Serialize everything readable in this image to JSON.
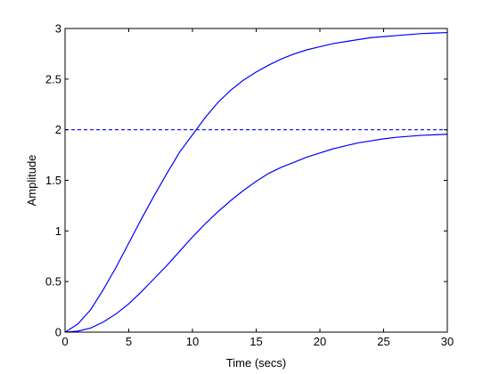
{
  "chart_data": {
    "type": "line",
    "xlabel": "Time (secs)",
    "ylabel": "Amplitude",
    "xlim": [
      0,
      30
    ],
    "ylim": [
      0,
      3
    ],
    "xticks": [
      0,
      5,
      10,
      15,
      20,
      25,
      30
    ],
    "yticks": [
      0,
      0.5,
      1,
      1.5,
      2,
      2.5,
      3
    ],
    "xtick_labels": [
      "0",
      "5",
      "10",
      "15",
      "20",
      "25",
      "30"
    ],
    "ytick_labels": [
      "0",
      "0.5",
      "1",
      "1.5",
      "2",
      "2.5",
      "3"
    ],
    "grid": false,
    "line_color": "#0000ff",
    "series": [
      {
        "style": "solid",
        "x": [
          0,
          1,
          2,
          3,
          4,
          5,
          6,
          7,
          8,
          9,
          10,
          11,
          12,
          13,
          14,
          15,
          16,
          17,
          18,
          19,
          20,
          21,
          22,
          23,
          24,
          25,
          26,
          27,
          28,
          29,
          30
        ],
        "y": [
          0,
          0.08,
          0.22,
          0.42,
          0.64,
          0.88,
          1.12,
          1.35,
          1.57,
          1.78,
          1.95,
          2.12,
          2.27,
          2.39,
          2.49,
          2.57,
          2.64,
          2.7,
          2.75,
          2.79,
          2.82,
          2.85,
          2.87,
          2.89,
          2.91,
          2.92,
          2.93,
          2.94,
          2.95,
          2.955,
          2.96
        ]
      },
      {
        "style": "solid",
        "x": [
          0,
          1,
          2,
          3,
          4,
          5,
          6,
          7,
          8,
          9,
          10,
          11,
          12,
          13,
          14,
          15,
          16,
          17,
          18,
          19,
          20,
          21,
          22,
          23,
          24,
          25,
          26,
          27,
          28,
          29,
          30
        ],
        "y": [
          0,
          0.01,
          0.04,
          0.1,
          0.18,
          0.28,
          0.4,
          0.53,
          0.66,
          0.8,
          0.94,
          1.07,
          1.19,
          1.3,
          1.4,
          1.49,
          1.57,
          1.63,
          1.68,
          1.73,
          1.77,
          1.81,
          1.84,
          1.87,
          1.89,
          1.91,
          1.925,
          1.935,
          1.945,
          1.95,
          1.955
        ]
      },
      {
        "style": "dashed",
        "x": [
          0,
          30
        ],
        "y": [
          2,
          2
        ]
      }
    ]
  }
}
